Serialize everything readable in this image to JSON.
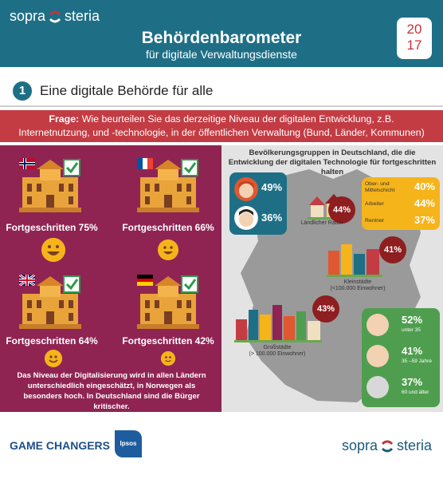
{
  "header": {
    "brand_left": "sopra",
    "brand_right": "steria",
    "title": "Behördenbarometer",
    "subtitle": "für digitale Verwaltungsdienste",
    "year_top": "20",
    "year_bottom": "17",
    "accent": "#1e6f86"
  },
  "section": {
    "number": "1",
    "label": "Eine digitale Behörde für alle"
  },
  "question": {
    "prefix": "Frage:",
    "text": " Wie beurteilen Sie das derzeitige Niveau der digitalen Entwicklung, z.B. Internetnutzung, und -technologie, in der öffentlichen Verwaltung (Bund, Länder, Kommunen) sowie deren Services?",
    "color": "#c33c44"
  },
  "countries": [
    {
      "flag": "norway-flag-icon",
      "label": "Fortgeschritten 75%"
    },
    {
      "flag": "france-flag-icon",
      "label": "Fortgeschritten 66%"
    },
    {
      "flag": "uk-flag-icon",
      "label": "Fortgeschritten 64%"
    },
    {
      "flag": "germany-flag-icon",
      "label": "Fortgeschritten 42%"
    }
  ],
  "left_note": "Das Niveau der Digitalisierung wird in allen Ländern unterschiedlich eingeschätzt, in Norwegen als besonders hoch. In Deutschland sind die Bürger kritischer.",
  "right": {
    "title": "Bevölkerungsgruppen in Deutschland, die die Entwicklung der digitalen Technologie für fortgeschritten halten",
    "gender": [
      {
        "icon": "woman-icon",
        "pct": "49%"
      },
      {
        "icon": "man-icon",
        "pct": "36%"
      }
    ],
    "social": [
      {
        "label": "Ober- und Mittelschicht",
        "pct": "40%"
      },
      {
        "label": "Arbeiter",
        "pct": "44%"
      },
      {
        "label": "Rentner",
        "pct": "37%"
      }
    ],
    "regions": [
      {
        "pct": "44%",
        "label": "Ländlicher Raum"
      },
      {
        "pct": "41%",
        "label": "Kleinstädte",
        "sub": "(<100.000 Einwohner)"
      },
      {
        "pct": "43%",
        "label": "Großstädte",
        "sub": "(> 100.000 Einwohner)"
      }
    ],
    "age": [
      {
        "pct": "52%",
        "label": "unter 35"
      },
      {
        "pct": "41%",
        "label": "35 –59 Jahre"
      },
      {
        "pct": "37%",
        "label": "60 und älter"
      }
    ]
  },
  "footer": {
    "partner": "GAME CHANGERS",
    "ipsos": "Ipsos",
    "brand_left": "sopra",
    "brand_right": "steria"
  }
}
